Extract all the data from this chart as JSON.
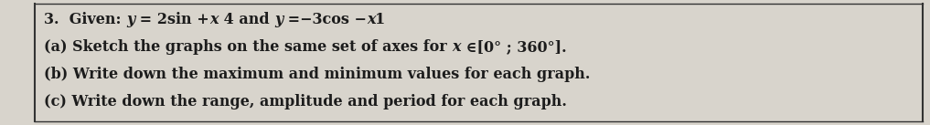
{
  "line1_segs": [
    {
      "text": "3.  Given: ",
      "italic": false
    },
    {
      "text": "y",
      "italic": true
    },
    {
      "text": " = 2sin +",
      "italic": false
    },
    {
      "text": "x",
      "italic": true
    },
    {
      "text": " 4 and ",
      "italic": false
    },
    {
      "text": "y",
      "italic": true
    },
    {
      "text": " =−3cos −",
      "italic": false
    },
    {
      "text": "x",
      "italic": true
    },
    {
      "text": "1",
      "italic": false
    }
  ],
  "line2_segs": [
    {
      "text": "(a) Sketch the graphs on the same set of axes for ",
      "italic": false
    },
    {
      "text": "x",
      "italic": true
    },
    {
      "text": " ∈[0° ; 360°].",
      "italic": false
    }
  ],
  "line3": "(b) Write down the maximum and minimum values for each graph.",
  "line4": "(c) Write down the range, amplitude and period for each graph.",
  "bg_color": "#d8d4cc",
  "text_color": "#1c1c1c",
  "border_color": "#333333",
  "font_size": 11.5,
  "fig_width": 10.17,
  "fig_height": 1.37,
  "dpi": 100
}
